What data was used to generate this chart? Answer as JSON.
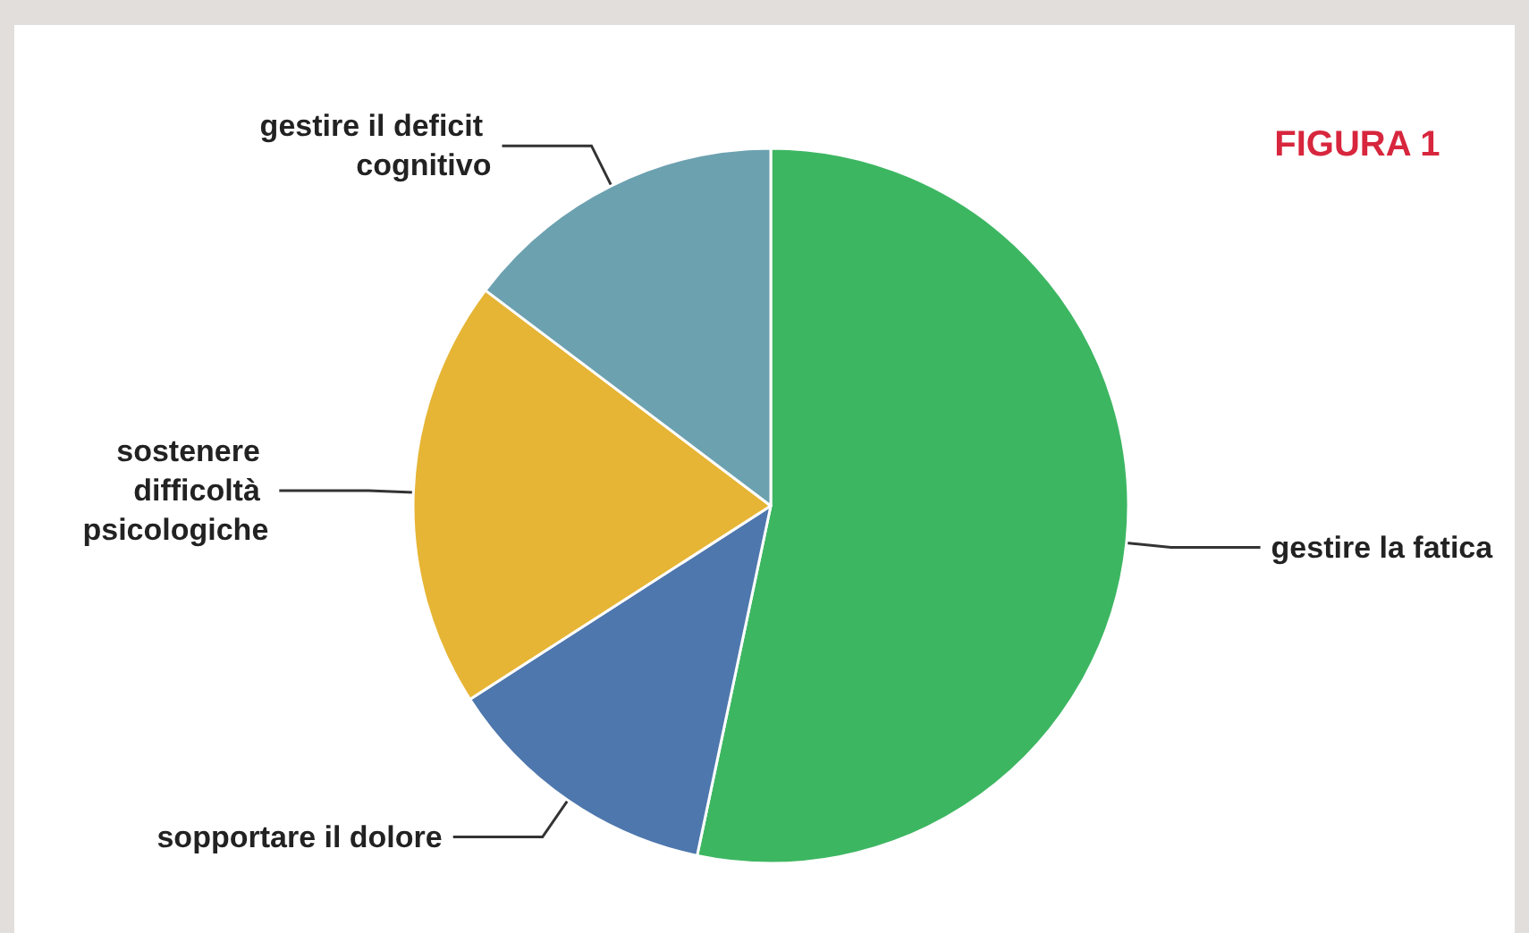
{
  "chart_data": {
    "type": "pie",
    "title": "FIGURA 1",
    "categories": [
      "gestire la fatica",
      "sopportare il dolore",
      "sostenere difficoltà psicologiche",
      "gestire il deficit cognitivo"
    ],
    "values": [
      53.3,
      12.6,
      19.4,
      14.7
    ],
    "colors": [
      "#3db662",
      "#4e77ad",
      "#e6b535",
      "#6ca1b0"
    ]
  }
}
